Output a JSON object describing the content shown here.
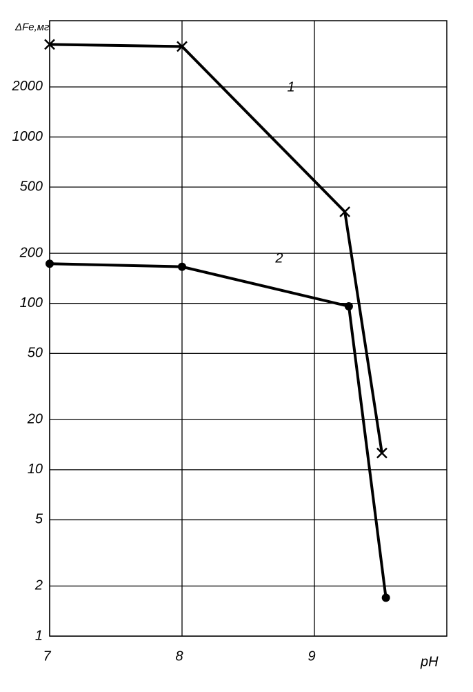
{
  "chart_data": {
    "type": "line",
    "y_label": "ΔFe,мг",
    "x_label": "pH",
    "xlim": [
      7,
      10
    ],
    "xticks": [
      7,
      8,
      9
    ],
    "ylim": [
      1,
      5000
    ],
    "yticks": [
      1,
      2,
      5,
      10,
      20,
      50,
      100,
      200,
      500,
      1000,
      2000
    ],
    "log_y": true,
    "grid": true,
    "series": [
      {
        "name": "1",
        "color": "#000000",
        "marker": "x",
        "x": [
          7,
          8,
          9.23,
          9.51
        ],
        "values": [
          3600,
          3500,
          355,
          12.6
        ]
      },
      {
        "name": "2",
        "color": "#000000",
        "marker": "o",
        "x": [
          7,
          8,
          9.26,
          9.54
        ],
        "values": [
          173,
          166,
          96,
          1.7
        ]
      }
    ]
  }
}
